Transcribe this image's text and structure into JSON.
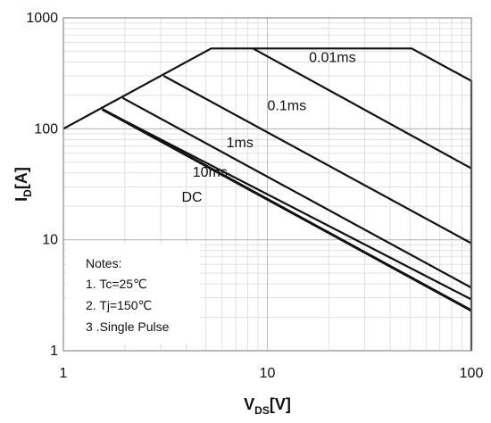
{
  "chart_data": {
    "type": "line",
    "xscale": "log",
    "yscale": "log",
    "xlim": [
      1,
      100
    ],
    "ylim": [
      1,
      1000
    ],
    "grid": true,
    "xlabel": {
      "main": "V",
      "sub": "DS",
      "unit": "[V]"
    },
    "ylabel": {
      "main": "I",
      "sub": "D",
      "unit": "[A]"
    },
    "x_ticks": [
      {
        "value": 1,
        "label": "1"
      },
      {
        "value": 10,
        "label": "10"
      },
      {
        "value": 100,
        "label": "100"
      }
    ],
    "y_ticks": [
      {
        "value": 1,
        "label": "1"
      },
      {
        "value": 10,
        "label": "10"
      },
      {
        "value": 100,
        "label": "100"
      },
      {
        "value": 1000,
        "label": "1000"
      }
    ],
    "series": [
      {
        "name": "envelope",
        "points": [
          [
            1,
            100
          ],
          [
            5.3,
            530
          ],
          [
            51,
            530
          ],
          [
            100,
            270
          ],
          [
            100,
            1
          ]
        ]
      },
      {
        "name": "0.01ms",
        "points": [
          [
            8.5,
            530
          ],
          [
            100,
            44
          ]
        ]
      },
      {
        "name": "0.1ms",
        "points": [
          [
            3.1,
            300
          ],
          [
            100,
            9.3
          ]
        ]
      },
      {
        "name": "1ms",
        "points": [
          [
            1.95,
            190
          ],
          [
            100,
            3.7
          ]
        ]
      },
      {
        "name": "10ms",
        "points": [
          [
            1.55,
            150
          ],
          [
            100,
            2.9
          ]
        ]
      },
      {
        "name": "DC",
        "points": [
          [
            1.55,
            150
          ],
          [
            100,
            2.3
          ]
        ]
      }
    ],
    "annotations": [
      {
        "id": "0.01ms",
        "text": "0.01ms",
        "x": 16,
        "y": 400
      },
      {
        "id": "0.1ms",
        "text": "0.1ms",
        "x": 10,
        "y": 147
      },
      {
        "id": "1ms",
        "text": "1ms",
        "x": 6.3,
        "y": 68
      },
      {
        "id": "10ms",
        "text": "10ms",
        "x": 4.3,
        "y": 37
      },
      {
        "id": "DC",
        "text": "DC",
        "x": 3.8,
        "y": 22
      }
    ],
    "notes": [
      "Notes:",
      "1. Tc=25℃",
      "2. Tj=150℃",
      "3 .Single Pulse"
    ]
  }
}
